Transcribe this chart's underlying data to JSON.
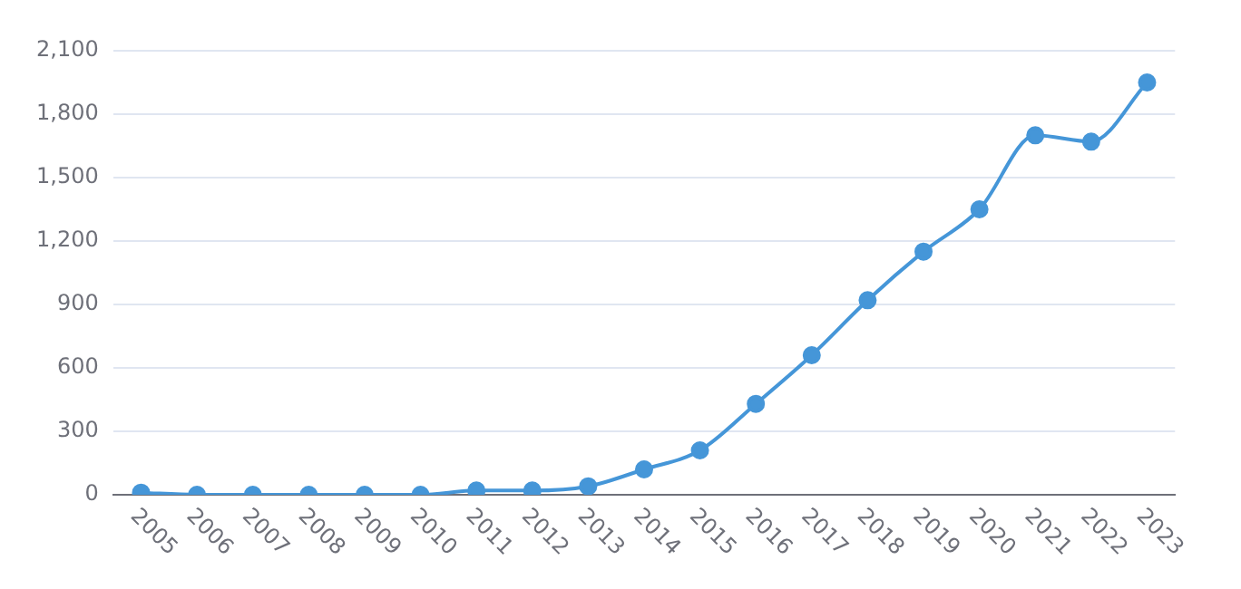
{
  "chart_data": {
    "type": "line",
    "categories": [
      "2005",
      "2006",
      "2007",
      "2008",
      "2009",
      "2010",
      "2011",
      "2012",
      "2013",
      "2014",
      "2015",
      "2016",
      "2017",
      "2018",
      "2019",
      "2020",
      "2021",
      "2022",
      "2023"
    ],
    "series": [
      {
        "color": "#4596d8",
        "values": [
          10,
          0,
          0,
          0,
          0,
          0,
          20,
          20,
          40,
          120,
          210,
          430,
          660,
          920,
          1150,
          1350,
          1700,
          1670,
          1950
        ]
      }
    ],
    "ylim": [
      0,
      2100
    ],
    "yticks": [
      0,
      300,
      600,
      900,
      {
        "value": 1200,
        "label": "1,200"
      },
      {
        "value": 1500,
        "label": "1,500"
      },
      {
        "value": 1800,
        "label": "1,800"
      },
      {
        "value": 2100,
        "label": "2,100"
      }
    ],
    "grid": "y",
    "legend": false,
    "marker": "circle",
    "line_style": "solid"
  }
}
